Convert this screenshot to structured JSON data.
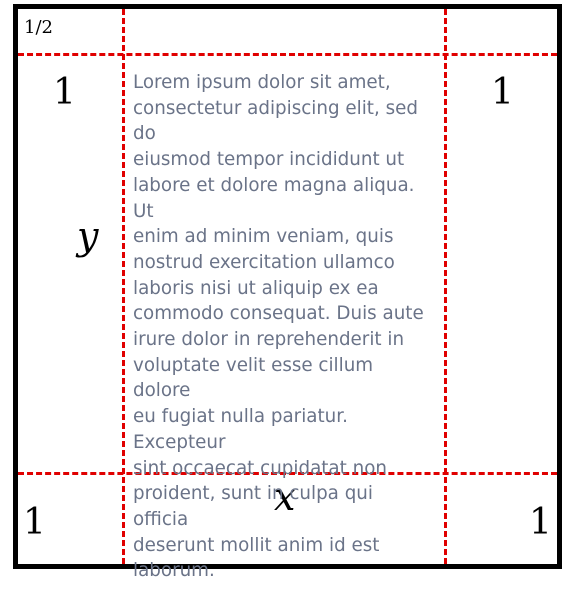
{
  "diagram": {
    "corner_label": "1/2",
    "top_left_value": "1",
    "top_right_value": "1",
    "bottom_left_value": "1",
    "bottom_right_value": "1",
    "y_label": "y",
    "x_label": "x",
    "body_text": "Lorem ipsum dolor sit amet,\nconsectetur adipiscing elit, sed do\neiusmod tempor incididunt ut\nlabore et dolore magna aliqua. Ut\nenim ad minim veniam, quis\nnostrud exercitation ullamco\nlaboris nisi ut aliquip ex ea\ncommodo consequat. Duis aute\nirure dolor in reprehenderit in\nvoluptate velit esse cillum dolore\neu fugiat nulla pariatur. Excepteur\nsint occaecat cupidatat non\nproident, sunt in culpa qui officia\ndeserunt mollit anim id est\nlaborum.",
    "colors": {
      "frame": "#000000",
      "guides": "#e00000",
      "body_text": "#6a7388"
    }
  }
}
